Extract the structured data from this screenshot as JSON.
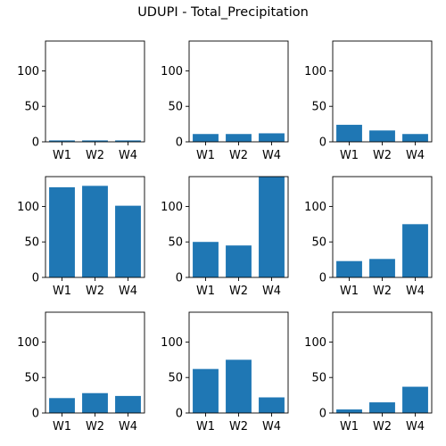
{
  "figure_title": "UDUPI - Total_Precipitation",
  "colors": {
    "bar": "#1f77b4",
    "axis": "#000000",
    "background": "#ffffff"
  },
  "chart_data": [
    {
      "type": "bar",
      "categories": [
        "W1",
        "W2",
        "W4"
      ],
      "values": [
        2,
        2,
        2
      ],
      "ylim": [
        0,
        142
      ],
      "yticks": [
        0,
        50,
        100
      ],
      "title": "",
      "xlabel": "",
      "ylabel": "",
      "grid": false
    },
    {
      "type": "bar",
      "categories": [
        "W1",
        "W2",
        "W4"
      ],
      "values": [
        11,
        11,
        12
      ],
      "ylim": [
        0,
        142
      ],
      "yticks": [
        0,
        50,
        100
      ],
      "title": "",
      "xlabel": "",
      "ylabel": "",
      "grid": false
    },
    {
      "type": "bar",
      "categories": [
        "W1",
        "W2",
        "W4"
      ],
      "values": [
        24,
        16,
        11
      ],
      "ylim": [
        0,
        142
      ],
      "yticks": [
        0,
        50,
        100
      ],
      "title": "",
      "xlabel": "",
      "ylabel": "",
      "grid": false
    },
    {
      "type": "bar",
      "categories": [
        "W1",
        "W2",
        "W4"
      ],
      "values": [
        127,
        129,
        101
      ],
      "ylim": [
        0,
        142
      ],
      "yticks": [
        0,
        50,
        100
      ],
      "title": "",
      "xlabel": "",
      "ylabel": "",
      "grid": false
    },
    {
      "type": "bar",
      "categories": [
        "W1",
        "W2",
        "W4"
      ],
      "values": [
        50,
        45,
        142
      ],
      "ylim": [
        0,
        142
      ],
      "yticks": [
        0,
        50,
        100
      ],
      "title": "",
      "xlabel": "",
      "ylabel": "",
      "grid": false
    },
    {
      "type": "bar",
      "categories": [
        "W1",
        "W2",
        "W4"
      ],
      "values": [
        23,
        26,
        75
      ],
      "ylim": [
        0,
        142
      ],
      "yticks": [
        0,
        50,
        100
      ],
      "title": "",
      "xlabel": "",
      "ylabel": "",
      "grid": false
    },
    {
      "type": "bar",
      "categories": [
        "W1",
        "W2",
        "W4"
      ],
      "values": [
        21,
        28,
        24
      ],
      "ylim": [
        0,
        142
      ],
      "yticks": [
        0,
        50,
        100
      ],
      "title": "",
      "xlabel": "",
      "ylabel": "",
      "grid": false
    },
    {
      "type": "bar",
      "categories": [
        "W1",
        "W2",
        "W4"
      ],
      "values": [
        62,
        75,
        22
      ],
      "ylim": [
        0,
        142
      ],
      "yticks": [
        0,
        50,
        100
      ],
      "title": "",
      "xlabel": "",
      "ylabel": "",
      "grid": false
    },
    {
      "type": "bar",
      "categories": [
        "W1",
        "W2",
        "W4"
      ],
      "values": [
        5,
        15,
        37
      ],
      "ylim": [
        0,
        142
      ],
      "yticks": [
        0,
        50,
        100
      ],
      "title": "",
      "xlabel": "",
      "ylabel": "",
      "grid": false
    }
  ]
}
